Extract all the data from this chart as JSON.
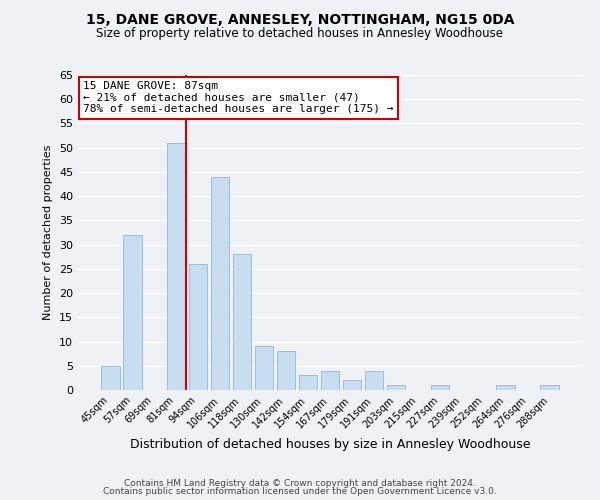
{
  "title": "15, DANE GROVE, ANNESLEY, NOTTINGHAM, NG15 0DA",
  "subtitle": "Size of property relative to detached houses in Annesley Woodhouse",
  "xlabel": "Distribution of detached houses by size in Annesley Woodhouse",
  "ylabel": "Number of detached properties",
  "bin_labels": [
    "45sqm",
    "57sqm",
    "69sqm",
    "81sqm",
    "94sqm",
    "106sqm",
    "118sqm",
    "130sqm",
    "142sqm",
    "154sqm",
    "167sqm",
    "179sqm",
    "191sqm",
    "203sqm",
    "215sqm",
    "227sqm",
    "239sqm",
    "252sqm",
    "264sqm",
    "276sqm",
    "288sqm"
  ],
  "bar_heights": [
    5,
    32,
    0,
    51,
    26,
    44,
    28,
    9,
    8,
    3,
    4,
    2,
    4,
    1,
    0,
    1,
    0,
    0,
    1,
    0,
    1
  ],
  "bar_color": "#c9ddf0",
  "bar_edge_color": "#a0bcd8",
  "vline_x_index": 3,
  "vline_color": "#cc0000",
  "annotation_line1": "15 DANE GROVE: 87sqm",
  "annotation_line2": "← 21% of detached houses are smaller (47)",
  "annotation_line3": "78% of semi-detached houses are larger (175) →",
  "annotation_box_color": "white",
  "annotation_box_edge_color": "#cc0000",
  "ylim": [
    0,
    65
  ],
  "yticks": [
    0,
    5,
    10,
    15,
    20,
    25,
    30,
    35,
    40,
    45,
    50,
    55,
    60,
    65
  ],
  "footer_line1": "Contains HM Land Registry data © Crown copyright and database right 2024.",
  "footer_line2": "Contains public sector information licensed under the Open Government Licence v3.0.",
  "background_color": "#eef2f7",
  "grid_color": "#ffffff"
}
